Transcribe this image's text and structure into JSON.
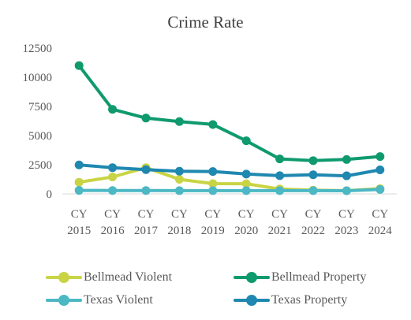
{
  "chart_data": {
    "type": "line",
    "title": "Crime Rate",
    "xlabel": "",
    "ylabel": "",
    "categories": [
      [
        "CY",
        "2015"
      ],
      [
        "CY",
        "2016"
      ],
      [
        "CY",
        "2017"
      ],
      [
        "CY",
        "2018"
      ],
      [
        "CY",
        "2019"
      ],
      [
        "CY",
        "2020"
      ],
      [
        "CY",
        "2021"
      ],
      [
        "CY",
        "2022"
      ],
      [
        "CY",
        "2023"
      ],
      [
        "CY",
        "2024"
      ]
    ],
    "yticks": [
      "0",
      "2500",
      "5000",
      "7500",
      "10000",
      "12500"
    ],
    "ylim": [
      0,
      12500
    ],
    "grid": false,
    "legend_position": "bottom",
    "series": [
      {
        "name": "Bellmead Violent",
        "color": "#c9d444",
        "values": [
          1000,
          1450,
          2250,
          1250,
          880,
          870,
          420,
          320,
          280,
          450
        ]
      },
      {
        "name": "Bellmead Property",
        "color": "#0f9a6e",
        "values": [
          11000,
          7250,
          6500,
          6200,
          5950,
          4550,
          3000,
          2850,
          2950,
          3200
        ]
      },
      {
        "name": "Texas Violent",
        "color": "#4bb8c4",
        "values": [
          300,
          290,
          290,
          280,
          280,
          280,
          280,
          280,
          270,
          380
        ]
      },
      {
        "name": "Texas Property",
        "color": "#1f88b0",
        "values": [
          2480,
          2250,
          2080,
          1940,
          1920,
          1700,
          1560,
          1640,
          1550,
          2060
        ]
      }
    ]
  }
}
